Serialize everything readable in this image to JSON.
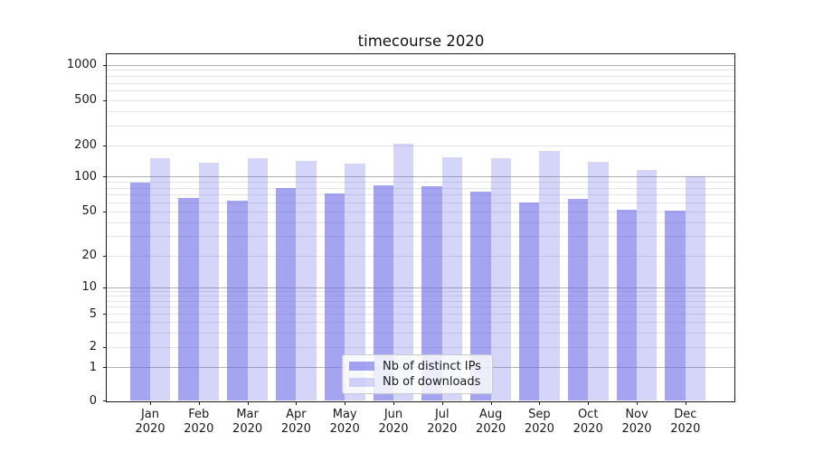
{
  "chart_data": {
    "type": "bar",
    "title": "timecourse 2020",
    "xlabel": "",
    "ylabel": "",
    "scale": "symlog",
    "ylim": [
      0,
      1300
    ],
    "grid": "on",
    "legend_position": "lower-center",
    "year": "2020",
    "categories": [
      "Jan",
      "Feb",
      "Mar",
      "Apr",
      "May",
      "Jun",
      "Jul",
      "Aug",
      "Sep",
      "Oct",
      "Nov",
      "Dec"
    ],
    "y_ticks": [
      0,
      1,
      2,
      5,
      10,
      20,
      50,
      100,
      200,
      500,
      1000
    ],
    "series": [
      {
        "name": "Nb of distinct IPs",
        "fill": "rgba(103,103,232,0.60)",
        "values": [
          89,
          66,
          62,
          80,
          72,
          85,
          83,
          74,
          60,
          65,
          52,
          51
        ]
      },
      {
        "name": "Nb of downloads",
        "fill": "rgba(103,103,232,0.28)",
        "values": [
          152,
          138,
          151,
          142,
          134,
          208,
          154,
          152,
          180,
          141,
          116,
          102
        ]
      }
    ],
    "colors": {
      "grid_major": "#b0b0b0",
      "grid_minor": "#e4e4e4",
      "spine": "#1a1a1a",
      "text": "#1a1a1a"
    }
  }
}
